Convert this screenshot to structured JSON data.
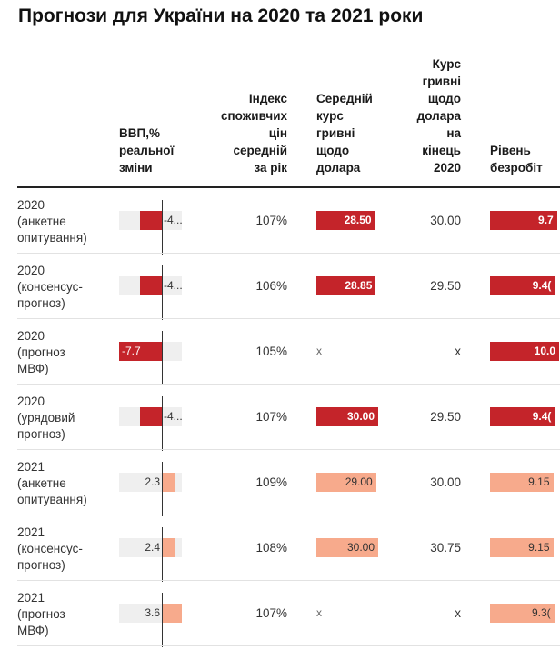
{
  "title": "Прогнози для України на 2020 та 2021 роки",
  "colors": {
    "dark": "#c4242a",
    "light": "#f7aa8c",
    "track": "#efefef"
  },
  "chart_data": {
    "type": "table",
    "columns": [
      "",
      "ВВП,%\nреальної\nзміни",
      "Індекс\nспоживчих\nцін\nсередній\nза рік",
      "Середній\nкурс\nгривні\nщодо\nдолара",
      "Курс\nгривні\nщодо\nдолара\nна\nкінець\n2020",
      "Рівень\nбезробіт"
    ],
    "rows": [
      {
        "label": "2020\n(анкетне\nопитування)",
        "gdp": -4.0,
        "gdp_text": "-4...",
        "cpi": "107%",
        "avg_rate": 28.5,
        "avg_rate_text": "28.50",
        "end_rate": "30.00",
        "unemployment": 9.7,
        "unemployment_text": "9.7",
        "year_color": "dark"
      },
      {
        "label": "2020\n(консенсус-\nпрогноз)",
        "gdp": -4.0,
        "gdp_text": "-4...",
        "cpi": "106%",
        "avg_rate": 28.85,
        "avg_rate_text": "28.85",
        "end_rate": "29.50",
        "unemployment": 9.4,
        "unemployment_text": "9.4(",
        "year_color": "dark"
      },
      {
        "label": "2020\n(прогноз\nМВФ)",
        "gdp": -7.7,
        "gdp_text": "-7.7",
        "cpi": "105%",
        "avg_rate": null,
        "avg_rate_text": "x",
        "end_rate": "x",
        "unemployment": 10.0,
        "unemployment_text": "10.0",
        "year_color": "dark"
      },
      {
        "label": "2020\n(урядовий\nпрогноз)",
        "gdp": -4.0,
        "gdp_text": "-4...",
        "cpi": "107%",
        "avg_rate": 30.0,
        "avg_rate_text": "30.00",
        "end_rate": "29.50",
        "unemployment": 9.4,
        "unemployment_text": "9.4(",
        "year_color": "dark"
      },
      {
        "label": "2021\n(анкетне\nопитування)",
        "gdp": 2.3,
        "gdp_text": "2.3",
        "cpi": "109%",
        "avg_rate": 29.0,
        "avg_rate_text": "29.00",
        "end_rate": "30.00",
        "unemployment": 9.15,
        "unemployment_text": "9.15",
        "year_color": "light"
      },
      {
        "label": "2021\n(консенсус-\nпрогноз)",
        "gdp": 2.4,
        "gdp_text": "2.4",
        "cpi": "108%",
        "avg_rate": 30.0,
        "avg_rate_text": "30.00",
        "end_rate": "30.75",
        "unemployment": 9.15,
        "unemployment_text": "9.15",
        "year_color": "light"
      },
      {
        "label": "2021\n(прогноз\nМВФ)",
        "gdp": 3.6,
        "gdp_text": "3.6",
        "cpi": "107%",
        "avg_rate": null,
        "avg_rate_text": "x",
        "end_rate": "x",
        "unemployment": 9.3,
        "unemployment_text": "9.3(",
        "year_color": "light"
      }
    ],
    "gdp_range": [
      -7.7,
      3.6
    ],
    "avg_rate_max": 30.0,
    "unemployment_max": 10.0
  }
}
